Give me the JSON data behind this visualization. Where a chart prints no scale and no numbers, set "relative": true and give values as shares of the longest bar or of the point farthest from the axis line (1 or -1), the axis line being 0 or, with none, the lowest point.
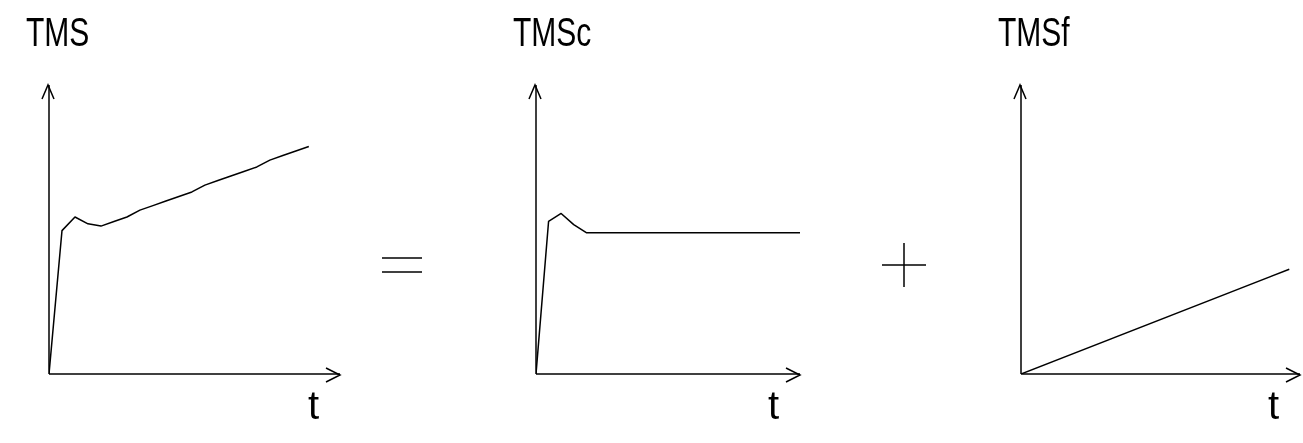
{
  "chart_data": [
    {
      "type": "line",
      "relative": true,
      "ylabel": "TMS",
      "xlabel": "t",
      "color": "#000000",
      "categories": [
        null,
        null,
        null,
        null,
        null,
        null,
        null,
        null,
        null,
        null,
        null,
        null,
        null,
        null,
        null,
        null,
        null,
        null,
        null,
        null,
        null
      ],
      "values": [
        0,
        0.63,
        0.69,
        0.66,
        0.65,
        0.67,
        0.69,
        0.72,
        0.74,
        0.76,
        0.78,
        0.8,
        0.83,
        0.85,
        0.87,
        0.89,
        0.91,
        0.94,
        0.96,
        0.98,
        1
      ]
    },
    {
      "type": "line",
      "relative": true,
      "ylabel": "TMSc",
      "xlabel": "t",
      "color": "#000000",
      "categories": [
        null,
        null,
        null,
        null,
        null,
        null,
        null,
        null,
        null,
        null,
        null,
        null,
        null,
        null,
        null,
        null,
        null,
        null,
        null,
        null,
        null,
        null
      ],
      "values": [
        0,
        0.95,
        1,
        0.93,
        0.88,
        0.88,
        0.88,
        0.88,
        0.88,
        0.88,
        0.88,
        0.88,
        0.88,
        0.88,
        0.88,
        0.88,
        0.88,
        0.88,
        0.88,
        0.88,
        0.88,
        0.88
      ]
    },
    {
      "type": "line",
      "relative": true,
      "ylabel": "TMSf",
      "xlabel": "t",
      "color": "#000000",
      "categories": [
        null,
        null
      ],
      "values": [
        0,
        1
      ]
    }
  ]
}
